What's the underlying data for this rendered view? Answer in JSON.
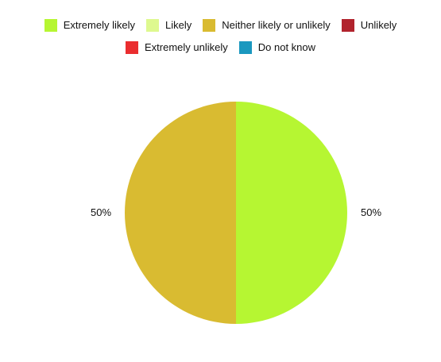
{
  "chart_data": {
    "type": "pie",
    "title": "",
    "legend_position": "top",
    "series": [
      {
        "name": "Extremely likely",
        "value": 50,
        "label": "50%",
        "color": "#b6f632"
      },
      {
        "name": "Likely",
        "value": 0,
        "label": "",
        "color": "#def98f"
      },
      {
        "name": "Neither likely or unlikely",
        "value": 50,
        "label": "50%",
        "color": "#d9bb31"
      },
      {
        "name": "Unlikely",
        "value": 0,
        "label": "",
        "color": "#b1232d"
      },
      {
        "name": "Extremely unlikely",
        "value": 0,
        "label": "",
        "color": "#ea2d2f"
      },
      {
        "name": "Do not know",
        "value": 0,
        "label": "",
        "color": "#1a98bf"
      }
    ]
  }
}
